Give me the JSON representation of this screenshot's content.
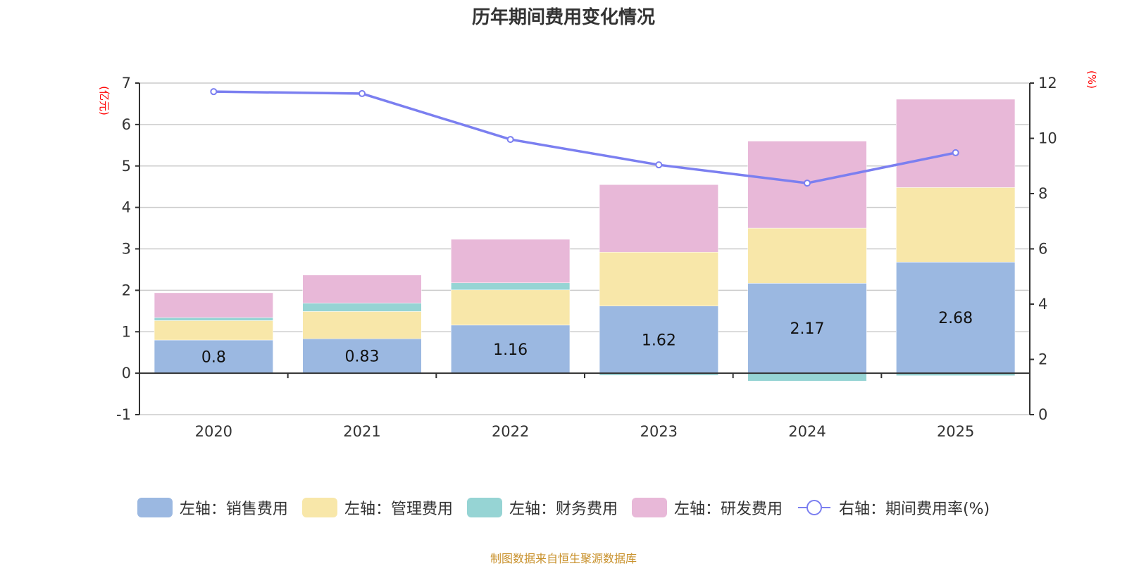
{
  "chart_data": {
    "type": "bar",
    "stacked": true,
    "title": "历年期间费用变化情况",
    "categories": [
      "2020",
      "2021",
      "2022",
      "2023",
      "2024",
      "2025"
    ],
    "left_axis": {
      "unit_label": "(亿元)",
      "ylim": [
        -1,
        7
      ],
      "ticks": [
        -1,
        0,
        1,
        2,
        3,
        4,
        5,
        6,
        7
      ]
    },
    "right_axis": {
      "unit_label": "(%)",
      "ylim": [
        0,
        12
      ],
      "ticks": [
        0,
        2,
        4,
        6,
        8,
        10,
        12
      ]
    },
    "grid": true,
    "series": [
      {
        "name": "左轴：销售费用",
        "axis": "left",
        "type": "bar",
        "color": "#9bb8e1",
        "values": [
          0.8,
          0.83,
          1.16,
          1.62,
          2.17,
          2.68
        ],
        "show_labels": true
      },
      {
        "name": "左轴：管理费用",
        "axis": "left",
        "type": "bar",
        "color": "#f8e7a9",
        "values": [
          0.47,
          0.66,
          0.85,
          1.3,
          1.33,
          1.8
        ],
        "show_labels": false
      },
      {
        "name": "左轴：财务费用",
        "axis": "left",
        "type": "bar",
        "color": "#96d4d4",
        "values": [
          0.07,
          0.2,
          0.17,
          -0.05,
          -0.19,
          -0.06
        ],
        "show_labels": false
      },
      {
        "name": "左轴：研发费用",
        "axis": "left",
        "type": "bar",
        "color": "#e8b8d8",
        "values": [
          0.6,
          0.68,
          1.05,
          1.63,
          2.1,
          2.13
        ],
        "show_labels": false
      },
      {
        "name": "右轴：期间费用率(%)",
        "axis": "right",
        "type": "line",
        "color": "#7b7ff0",
        "values": [
          11.69,
          11.62,
          9.96,
          9.04,
          8.38,
          9.48
        ],
        "show_labels": false
      }
    ],
    "legend_position": "bottom"
  },
  "footer": {
    "source": "制图数据来自恒生聚源数据库"
  }
}
